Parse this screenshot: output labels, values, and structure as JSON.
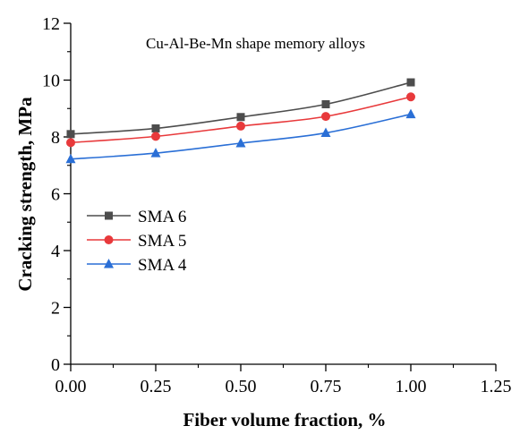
{
  "chart_data": {
    "type": "line",
    "annotation": "Cu-Al-Be-Mn shape memory alloys",
    "xlabel": "Fiber volume fraction, %",
    "ylabel": "Cracking strength, MPa",
    "xlim": [
      0,
      1.25
    ],
    "ylim": [
      0,
      12
    ],
    "x_ticks": [
      "0.00",
      "0.25",
      "0.50",
      "0.75",
      "1.00",
      "1.25"
    ],
    "y_ticks": [
      "0",
      "2",
      "4",
      "6",
      "8",
      "10",
      "12"
    ],
    "grid": false,
    "legend_position": "middle-left",
    "x": [
      0,
      0.25,
      0.5,
      0.75,
      1.0
    ],
    "series": [
      {
        "name": "SMA 6",
        "color": "#4d4d4d",
        "marker": "square",
        "values": [
          8.1,
          8.3,
          8.7,
          9.15,
          9.92
        ]
      },
      {
        "name": "SMA 5",
        "color": "#e8393b",
        "marker": "circle",
        "values": [
          7.8,
          8.02,
          8.38,
          8.72,
          9.41
        ]
      },
      {
        "name": "SMA 4",
        "color": "#2a6fd6",
        "marker": "triangle",
        "values": [
          7.22,
          7.43,
          7.78,
          8.14,
          8.8
        ]
      }
    ]
  }
}
